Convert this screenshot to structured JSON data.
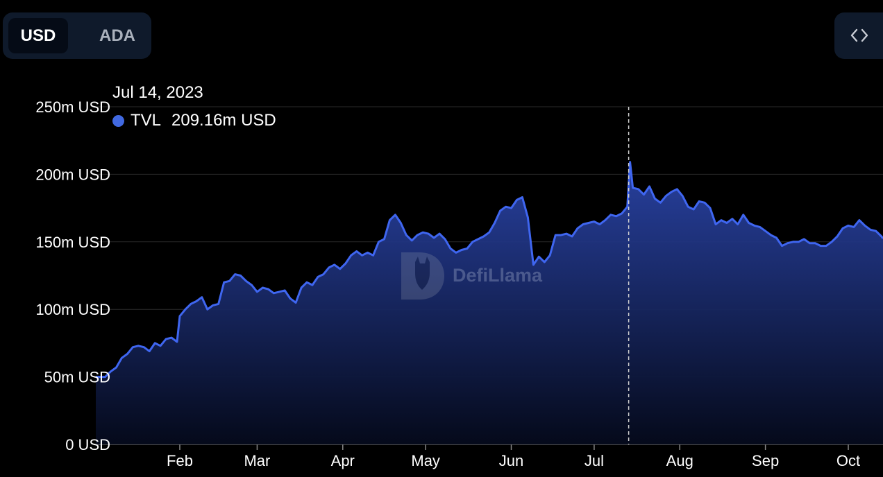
{
  "currency_toggle": {
    "options": [
      "USD",
      "ADA"
    ],
    "selected": "USD"
  },
  "embed_button": {
    "icon": "code-brackets-icon"
  },
  "watermark": {
    "text": "DefiLlama"
  },
  "tooltip": {
    "date": "Jul 14, 2023",
    "series_label": "TVL",
    "value": "209.16m USD",
    "dot_color": "#4169e1"
  },
  "colors": {
    "line": "#3f66f0",
    "area_top": "#2a44a8",
    "area_bottom": "#050a1c",
    "grid": "#2a2a2a",
    "background": "#000000"
  },
  "chart_data": {
    "type": "area",
    "title": "",
    "xlabel": "",
    "ylabel": "",
    "ylim": [
      0,
      250
    ],
    "y_unit": "m USD",
    "y_ticks": [
      0,
      50,
      100,
      150,
      200,
      250
    ],
    "y_tick_labels": [
      "0 USD",
      "50m USD",
      "100m USD",
      "150m USD",
      "200m USD",
      "250m USD"
    ],
    "x_ticks": [
      {
        "label": "Feb",
        "date": "2023-02-01"
      },
      {
        "label": "Mar",
        "date": "2023-03-01"
      },
      {
        "label": "Apr",
        "date": "2023-04-01"
      },
      {
        "label": "May",
        "date": "2023-05-01"
      },
      {
        "label": "Jun",
        "date": "2023-06-01"
      },
      {
        "label": "Jul",
        "date": "2023-07-01"
      },
      {
        "label": "Aug",
        "date": "2023-08-01"
      },
      {
        "label": "Sep",
        "date": "2023-09-01"
      },
      {
        "label": "Oct",
        "date": "2023-10-01"
      }
    ],
    "x_range": [
      "2023-01-05",
      "2023-10-25"
    ],
    "grid": true,
    "highlight_date": "2023-07-14",
    "series": [
      {
        "name": "TVL",
        "points": [
          [
            "2023-01-05",
            50
          ],
          [
            "2023-01-07",
            54
          ],
          [
            "2023-01-09",
            57
          ],
          [
            "2023-01-11",
            64
          ],
          [
            "2023-01-13",
            67
          ],
          [
            "2023-01-15",
            72
          ],
          [
            "2023-01-17",
            73
          ],
          [
            "2023-01-19",
            72
          ],
          [
            "2023-01-21",
            69
          ],
          [
            "2023-01-23",
            75
          ],
          [
            "2023-01-25",
            73
          ],
          [
            "2023-01-27",
            78
          ],
          [
            "2023-01-29",
            79
          ],
          [
            "2023-01-31",
            76
          ],
          [
            "2023-02-01",
            95
          ],
          [
            "2023-02-03",
            100
          ],
          [
            "2023-02-05",
            104
          ],
          [
            "2023-02-07",
            106
          ],
          [
            "2023-02-09",
            109
          ],
          [
            "2023-02-11",
            100
          ],
          [
            "2023-02-13",
            103
          ],
          [
            "2023-02-15",
            104
          ],
          [
            "2023-02-17",
            120
          ],
          [
            "2023-02-19",
            121
          ],
          [
            "2023-02-21",
            126
          ],
          [
            "2023-02-23",
            125
          ],
          [
            "2023-02-25",
            121
          ],
          [
            "2023-02-27",
            118
          ],
          [
            "2023-03-01",
            113
          ],
          [
            "2023-03-03",
            116
          ],
          [
            "2023-03-05",
            115
          ],
          [
            "2023-03-07",
            112
          ],
          [
            "2023-03-09",
            113
          ],
          [
            "2023-03-11",
            114
          ],
          [
            "2023-03-13",
            108
          ],
          [
            "2023-03-15",
            105
          ],
          [
            "2023-03-17",
            116
          ],
          [
            "2023-03-19",
            120
          ],
          [
            "2023-03-21",
            118
          ],
          [
            "2023-03-23",
            124
          ],
          [
            "2023-03-25",
            126
          ],
          [
            "2023-03-27",
            131
          ],
          [
            "2023-03-29",
            133
          ],
          [
            "2023-03-31",
            130
          ],
          [
            "2023-04-02",
            134
          ],
          [
            "2023-04-04",
            140
          ],
          [
            "2023-04-06",
            143
          ],
          [
            "2023-04-08",
            140
          ],
          [
            "2023-04-10",
            142
          ],
          [
            "2023-04-12",
            140
          ],
          [
            "2023-04-14",
            150
          ],
          [
            "2023-04-16",
            152
          ],
          [
            "2023-04-18",
            166
          ],
          [
            "2023-04-20",
            170
          ],
          [
            "2023-04-22",
            164
          ],
          [
            "2023-04-24",
            155
          ],
          [
            "2023-04-26",
            151
          ],
          [
            "2023-04-28",
            155
          ],
          [
            "2023-04-30",
            157
          ],
          [
            "2023-05-02",
            156
          ],
          [
            "2023-05-04",
            153
          ],
          [
            "2023-05-06",
            156
          ],
          [
            "2023-05-08",
            152
          ],
          [
            "2023-05-10",
            145
          ],
          [
            "2023-05-12",
            142
          ],
          [
            "2023-05-14",
            144
          ],
          [
            "2023-05-16",
            145
          ],
          [
            "2023-05-18",
            150
          ],
          [
            "2023-05-20",
            152
          ],
          [
            "2023-05-22",
            154
          ],
          [
            "2023-05-24",
            157
          ],
          [
            "2023-05-26",
            164
          ],
          [
            "2023-05-28",
            173
          ],
          [
            "2023-05-30",
            176
          ],
          [
            "2023-06-01",
            175
          ],
          [
            "2023-06-03",
            181
          ],
          [
            "2023-06-05",
            183
          ],
          [
            "2023-06-07",
            168
          ],
          [
            "2023-06-09",
            133
          ],
          [
            "2023-06-11",
            139
          ],
          [
            "2023-06-13",
            135
          ],
          [
            "2023-06-15",
            140
          ],
          [
            "2023-06-17",
            155
          ],
          [
            "2023-06-19",
            155
          ],
          [
            "2023-06-21",
            156
          ],
          [
            "2023-06-23",
            154
          ],
          [
            "2023-06-25",
            160
          ],
          [
            "2023-06-27",
            163
          ],
          [
            "2023-06-29",
            164
          ],
          [
            "2023-07-01",
            165
          ],
          [
            "2023-07-03",
            163
          ],
          [
            "2023-07-05",
            166
          ],
          [
            "2023-07-07",
            170
          ],
          [
            "2023-07-09",
            169
          ],
          [
            "2023-07-11",
            171
          ],
          [
            "2023-07-13",
            176
          ],
          [
            "2023-07-14",
            209.16
          ],
          [
            "2023-07-15",
            190
          ],
          [
            "2023-07-17",
            189
          ],
          [
            "2023-07-19",
            185
          ],
          [
            "2023-07-21",
            191
          ],
          [
            "2023-07-23",
            182
          ],
          [
            "2023-07-25",
            179
          ],
          [
            "2023-07-27",
            184
          ],
          [
            "2023-07-29",
            187
          ],
          [
            "2023-07-31",
            189
          ],
          [
            "2023-08-02",
            184
          ],
          [
            "2023-08-04",
            176
          ],
          [
            "2023-08-06",
            174
          ],
          [
            "2023-08-08",
            180
          ],
          [
            "2023-08-10",
            179
          ],
          [
            "2023-08-12",
            175
          ],
          [
            "2023-08-14",
            163
          ],
          [
            "2023-08-16",
            166
          ],
          [
            "2023-08-18",
            164
          ],
          [
            "2023-08-20",
            167
          ],
          [
            "2023-08-22",
            163
          ],
          [
            "2023-08-24",
            170
          ],
          [
            "2023-08-26",
            164
          ],
          [
            "2023-08-28",
            162
          ],
          [
            "2023-08-30",
            161
          ],
          [
            "2023-09-01",
            158
          ],
          [
            "2023-09-03",
            155
          ],
          [
            "2023-09-05",
            153
          ],
          [
            "2023-09-07",
            147
          ],
          [
            "2023-09-09",
            149
          ],
          [
            "2023-09-11",
            150
          ],
          [
            "2023-09-13",
            150
          ],
          [
            "2023-09-15",
            152
          ],
          [
            "2023-09-17",
            149
          ],
          [
            "2023-09-19",
            149
          ],
          [
            "2023-09-21",
            147
          ],
          [
            "2023-09-23",
            147
          ],
          [
            "2023-09-25",
            150
          ],
          [
            "2023-09-27",
            154
          ],
          [
            "2023-09-29",
            160
          ],
          [
            "2023-10-01",
            162
          ],
          [
            "2023-10-03",
            161
          ],
          [
            "2023-10-05",
            166
          ],
          [
            "2023-10-07",
            162
          ],
          [
            "2023-10-09",
            159
          ],
          [
            "2023-10-11",
            158
          ],
          [
            "2023-10-13",
            154
          ]
        ]
      }
    ]
  }
}
